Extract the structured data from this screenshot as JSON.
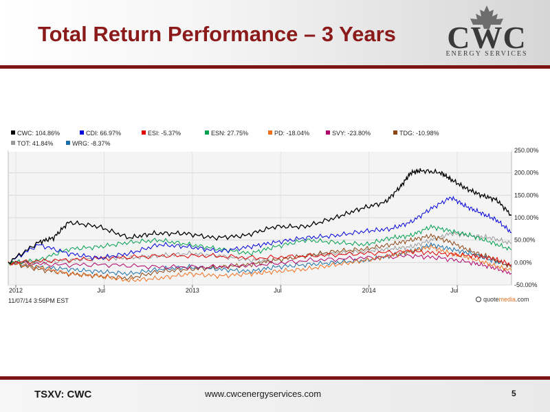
{
  "slide": {
    "title": "Total Return Performance – 3 Years",
    "page_number": "5"
  },
  "logo": {
    "name": "CWC",
    "subtitle": "ENERGY SERVICES",
    "mark_icon": "maple-leaf-icon"
  },
  "footer": {
    "ticker": "TSXV: CWC",
    "url": "www.cwcenergyservices.com"
  },
  "chart_data": {
    "type": "line",
    "x_ticks": [
      "2012",
      "Jul",
      "2013",
      "Jul",
      "2014",
      "Jul"
    ],
    "y_ticks": [
      "250.00%",
      "200.00%",
      "150.00%",
      "100.00%",
      "50.00%",
      "0.00%",
      "-50.00%"
    ],
    "ylim": [
      -50,
      250
    ],
    "y_axis_side": "right",
    "grid": true,
    "timestamp": "11/07/14 3:56PM EST",
    "source": "© quotemedia.com",
    "source_parts": {
      "pre": "quote",
      "accent": "media",
      "post": ".com"
    },
    "legend_position": "top",
    "series": [
      {
        "name": "CWC",
        "total": "104.86%",
        "color": "#000000",
        "x": [
          0,
          0.06,
          0.09,
          0.12,
          0.18,
          0.24,
          0.29,
          0.35,
          0.41,
          0.47,
          0.53,
          0.59,
          0.65,
          0.7,
          0.75,
          0.78,
          0.8,
          0.82,
          0.86,
          0.88,
          0.91,
          0.94,
          0.97,
          1.0
        ],
        "values": [
          0,
          45,
          55,
          90,
          80,
          55,
          65,
          65,
          55,
          60,
          80,
          80,
          100,
          120,
          135,
          170,
          200,
          205,
          200,
          185,
          165,
          150,
          140,
          105
        ]
      },
      {
        "name": "CDI",
        "total": "66.97%",
        "color": "#0000dd",
        "x": [
          0,
          0.06,
          0.12,
          0.18,
          0.24,
          0.3,
          0.36,
          0.42,
          0.48,
          0.53,
          0.59,
          0.65,
          0.71,
          0.76,
          0.8,
          0.84,
          0.88,
          0.91,
          0.94,
          0.97,
          1.0
        ],
        "values": [
          0,
          40,
          20,
          10,
          20,
          40,
          35,
          25,
          35,
          45,
          55,
          60,
          70,
          75,
          90,
          120,
          145,
          125,
          110,
          95,
          67
        ]
      },
      {
        "name": "ESI",
        "total": "-5.37%",
        "color": "#e00000",
        "x": [
          0,
          0.1,
          0.2,
          0.3,
          0.4,
          0.5,
          0.6,
          0.7,
          0.8,
          0.86,
          0.92,
          0.96,
          1.0
        ],
        "values": [
          0,
          5,
          10,
          15,
          15,
          10,
          15,
          20,
          25,
          20,
          15,
          10,
          -5
        ]
      },
      {
        "name": "ESN",
        "total": "27.75%",
        "color": "#00a050",
        "x": [
          0,
          0.06,
          0.12,
          0.18,
          0.24,
          0.3,
          0.36,
          0.42,
          0.48,
          0.53,
          0.59,
          0.65,
          0.71,
          0.76,
          0.8,
          0.84,
          0.88,
          0.92,
          0.96,
          1.0
        ],
        "values": [
          0,
          5,
          30,
          35,
          45,
          50,
          40,
          30,
          20,
          35,
          50,
          45,
          40,
          55,
          60,
          80,
          70,
          60,
          45,
          28
        ]
      },
      {
        "name": "PD",
        "total": "-18.04%",
        "color": "#f07020",
        "x": [
          0,
          0.06,
          0.12,
          0.18,
          0.24,
          0.3,
          0.36,
          0.42,
          0.48,
          0.53,
          0.59,
          0.65,
          0.71,
          0.76,
          0.8,
          0.84,
          0.88,
          0.92,
          0.96,
          1.0
        ],
        "values": [
          0,
          -10,
          -25,
          -30,
          -40,
          -35,
          -25,
          -30,
          -25,
          -20,
          -15,
          -5,
          5,
          15,
          25,
          35,
          20,
          10,
          -5,
          -18
        ]
      },
      {
        "name": "SVY",
        "total": "-23.80%",
        "color": "#b0006a",
        "x": [
          0,
          0.1,
          0.2,
          0.3,
          0.4,
          0.5,
          0.6,
          0.7,
          0.8,
          0.86,
          0.92,
          0.96,
          1.0
        ],
        "values": [
          0,
          -5,
          -5,
          -10,
          -10,
          -5,
          5,
          10,
          15,
          10,
          0,
          -10,
          -24
        ]
      },
      {
        "name": "TDG",
        "total": "-10.98%",
        "color": "#8b4513",
        "x": [
          0,
          0.06,
          0.12,
          0.18,
          0.24,
          0.3,
          0.36,
          0.42,
          0.48,
          0.53,
          0.59,
          0.65,
          0.71,
          0.76,
          0.8,
          0.84,
          0.88,
          0.92,
          0.96,
          1.0
        ],
        "values": [
          0,
          -15,
          -25,
          -30,
          -35,
          -20,
          -15,
          -10,
          -5,
          5,
          15,
          25,
          30,
          40,
          50,
          60,
          45,
          25,
          10,
          -11
        ]
      },
      {
        "name": "TOT",
        "total": "41.84%",
        "color": "#999999",
        "x": [
          0,
          0.06,
          0.12,
          0.18,
          0.24,
          0.3,
          0.36,
          0.42,
          0.48,
          0.53,
          0.59,
          0.65,
          0.71,
          0.76,
          0.8,
          0.84,
          0.88,
          0.92,
          0.96,
          1.0
        ],
        "values": [
          0,
          0,
          5,
          10,
          10,
          15,
          20,
          15,
          5,
          5,
          15,
          20,
          25,
          30,
          35,
          50,
          65,
          60,
          55,
          42
        ]
      },
      {
        "name": "WRG",
        "total": "-8.37%",
        "color": "#1a6fa8",
        "x": [
          0,
          0.06,
          0.12,
          0.18,
          0.24,
          0.3,
          0.36,
          0.42,
          0.48,
          0.53,
          0.59,
          0.65,
          0.71,
          0.76,
          0.8,
          0.84,
          0.88,
          0.92,
          0.96,
          1.0
        ],
        "values": [
          0,
          -10,
          -15,
          -20,
          -25,
          -15,
          -10,
          -15,
          -20,
          -10,
          -5,
          0,
          5,
          15,
          25,
          40,
          30,
          20,
          5,
          -8
        ]
      }
    ]
  }
}
